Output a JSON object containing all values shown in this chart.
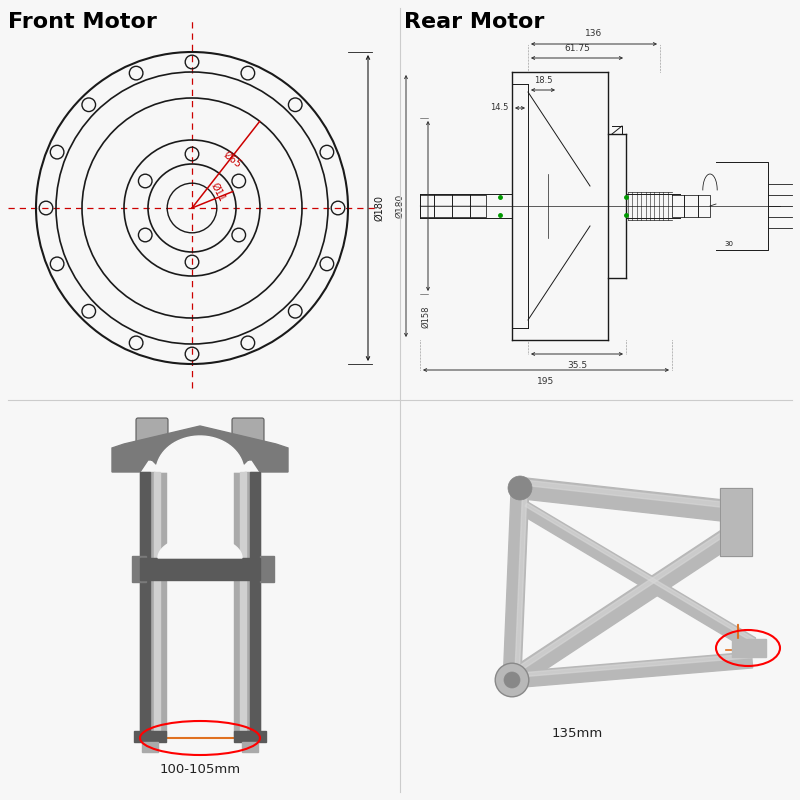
{
  "bg_color": "#f7f7f7",
  "title_front": "Front Motor",
  "title_rear": "Rear Motor",
  "title_fontsize": 16,
  "label_100_105": "100-105mm",
  "label_135": "135mm",
  "line_color": "#1a1a1a",
  "red_color": "#cc0000",
  "orange_color": "#e07020",
  "gray1": "#888888",
  "gray2": "#aaaaaa",
  "gray3": "#cccccc",
  "gray_dark": "#555555",
  "silver": "#b0b0b0",
  "silver_light": "#d0d0d0",
  "silver_dark": "#888888",
  "green_accent": "#00aa00",
  "dim_color": "#333333"
}
